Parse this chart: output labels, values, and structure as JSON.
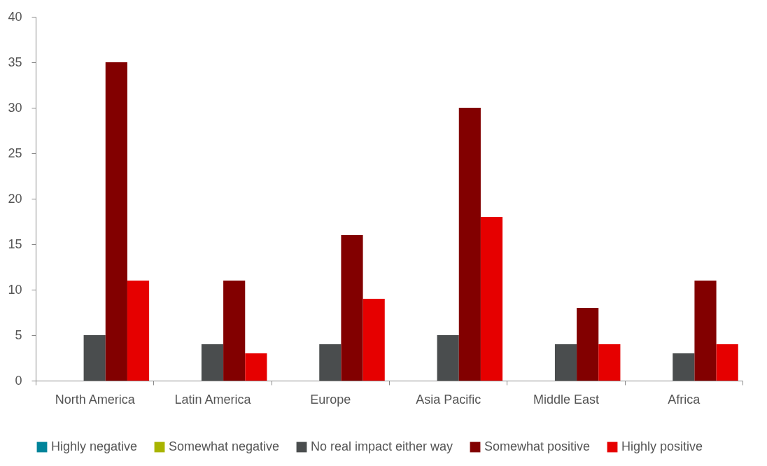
{
  "chart_data": {
    "type": "bar",
    "categories": [
      "North America",
      "Latin America",
      "Europe",
      "Asia Pacific",
      "Middle East",
      "Africa"
    ],
    "series": [
      {
        "name": "Highly negative",
        "color": "#00849a",
        "values": [
          0,
          0,
          0,
          0,
          0,
          0
        ]
      },
      {
        "name": "Somewhat negative",
        "color": "#a8b400",
        "values": [
          0,
          0,
          0,
          0,
          0,
          0
        ]
      },
      {
        "name": "No real impact either way",
        "color": "#4a4d4e",
        "values": [
          5,
          4,
          4,
          5,
          4,
          3
        ]
      },
      {
        "name": "Somewhat positive",
        "color": "#820000",
        "values": [
          35,
          11,
          16,
          30,
          8,
          11
        ]
      },
      {
        "name": "Highly positive",
        "color": "#e60000",
        "values": [
          11,
          3,
          9,
          18,
          4,
          4
        ]
      }
    ],
    "ylim": [
      0,
      40
    ],
    "yticks": [
      0,
      5,
      10,
      15,
      20,
      25,
      30,
      35,
      40
    ],
    "grid": false,
    "legend": "bottom"
  }
}
